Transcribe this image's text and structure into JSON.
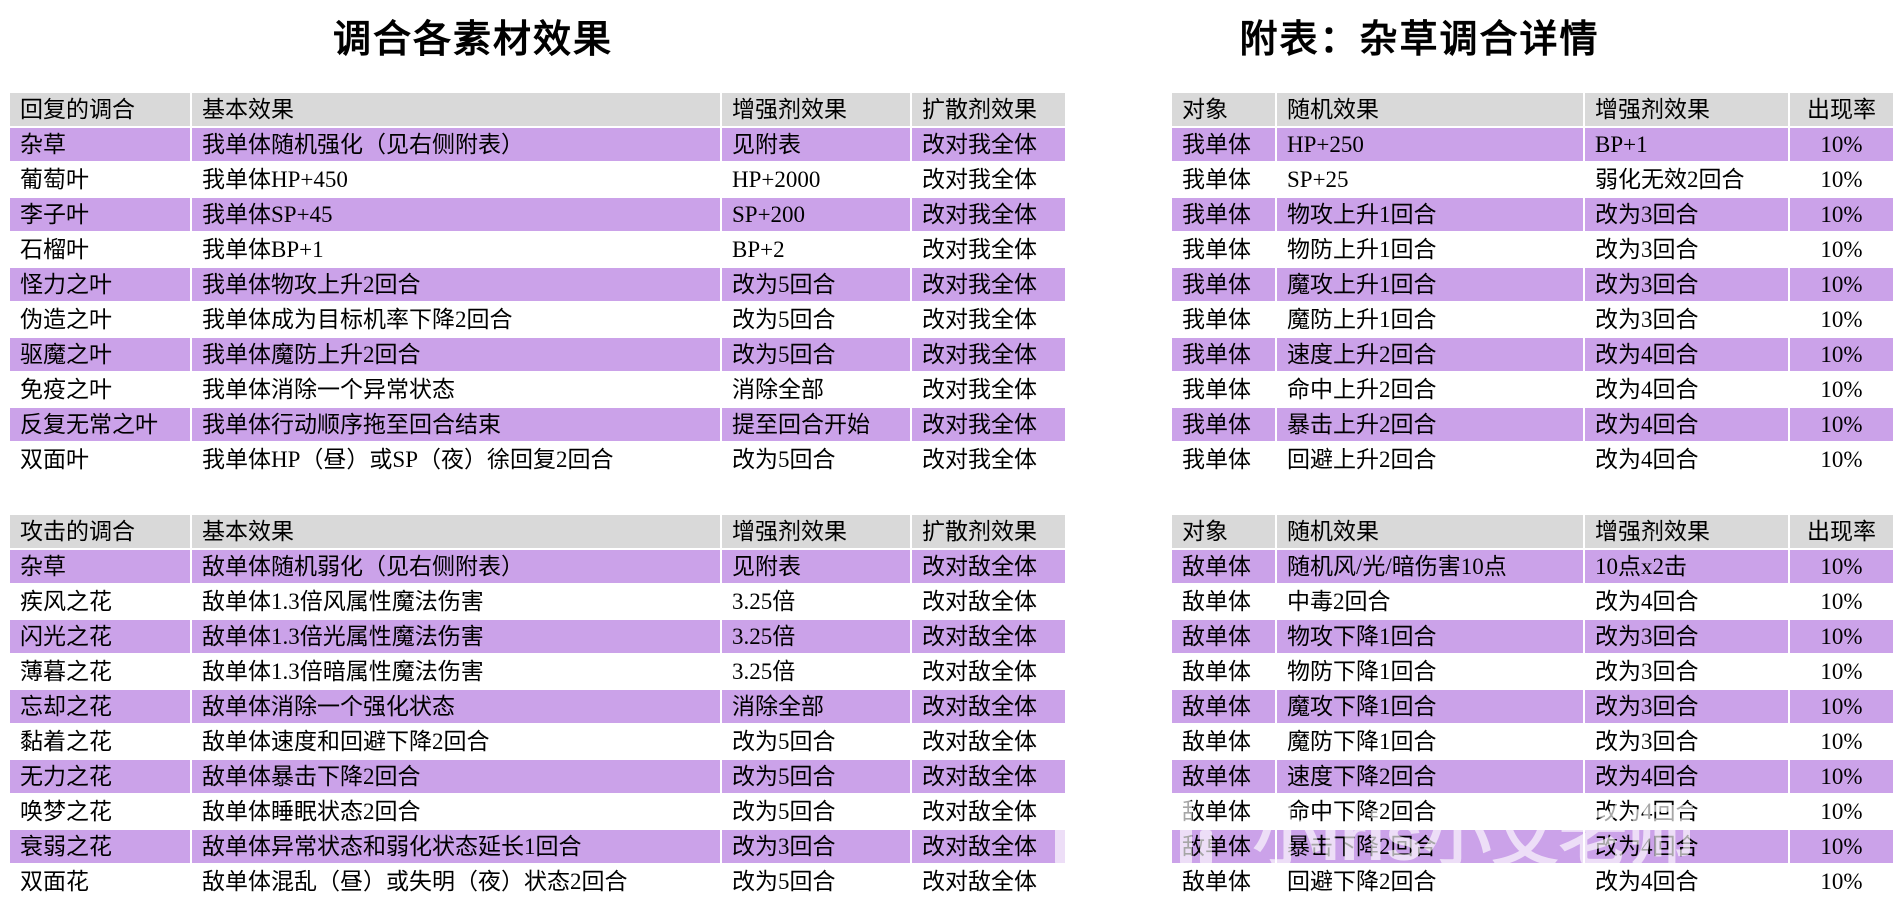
{
  "titles": {
    "left": "调合各素材效果",
    "right": "附表：杂草调合详情"
  },
  "colors": {
    "row_purple": "#cba2e9",
    "header_gray": "#d9d9d9",
    "background": "#ffffff",
    "text": "#000000"
  },
  "watermark": {
    "text": "小Iris小艾老师"
  },
  "tables": {
    "recovery": {
      "headers": [
        "回复的调合",
        "基本效果",
        "增强剂效果",
        "扩散剂效果"
      ],
      "rows": [
        [
          "杂草",
          "我单体随机强化（见右侧附表）",
          "见附表",
          "改对我全体"
        ],
        [
          "葡萄叶",
          "我单体HP+450",
          "HP+2000",
          "改对我全体"
        ],
        [
          "李子叶",
          "我单体SP+45",
          "SP+200",
          "改对我全体"
        ],
        [
          "石榴叶",
          "我单体BP+1",
          "BP+2",
          "改对我全体"
        ],
        [
          "怪力之叶",
          "我单体物攻上升2回合",
          "改为5回合",
          "改对我全体"
        ],
        [
          "伪造之叶",
          "我单体成为目标机率下降2回合",
          "改为5回合",
          "改对我全体"
        ],
        [
          "驱魔之叶",
          "我单体魔防上升2回合",
          "改为5回合",
          "改对我全体"
        ],
        [
          "免疫之叶",
          "我单体消除一个异常状态",
          "消除全部",
          "改对我全体"
        ],
        [
          "反复无常之叶",
          "我单体行动顺序拖至回合结束",
          "提至回合开始",
          "改对我全体"
        ],
        [
          "双面叶",
          "我单体HP（昼）或SP（夜）徐回复2回合",
          "改为5回合",
          "改对我全体"
        ]
      ]
    },
    "attack": {
      "headers": [
        "攻击的调合",
        "基本效果",
        "增强剂效果",
        "扩散剂效果"
      ],
      "rows": [
        [
          "杂草",
          "敌单体随机弱化（见右侧附表）",
          "见附表",
          "改对敌全体"
        ],
        [
          "疾风之花",
          "敌单体1.3倍风属性魔法伤害",
          "3.25倍",
          "改对敌全体"
        ],
        [
          "闪光之花",
          "敌单体1.3倍光属性魔法伤害",
          "3.25倍",
          "改对敌全体"
        ],
        [
          "薄暮之花",
          "敌单体1.3倍暗属性魔法伤害",
          "3.25倍",
          "改对敌全体"
        ],
        [
          "忘却之花",
          "敌单体消除一个强化状态",
          "消除全部",
          "改对敌全体"
        ],
        [
          "黏着之花",
          "敌单体速度和回避下降2回合",
          "改为5回合",
          "改对敌全体"
        ],
        [
          "无力之花",
          "敌单体暴击下降2回合",
          "改为5回合",
          "改对敌全体"
        ],
        [
          "唤梦之花",
          "敌单体睡眠状态2回合",
          "改为5回合",
          "改对敌全体"
        ],
        [
          "衰弱之花",
          "敌单体异常状态和弱化状态延长1回合",
          "改为3回合",
          "改对敌全体"
        ],
        [
          "双面花",
          "敌单体混乱（昼）或失明（夜）状态2回合",
          "改为5回合",
          "改对敌全体"
        ]
      ]
    },
    "weed_recovery": {
      "headers": [
        "对象",
        "随机效果",
        "增强剂效果",
        "出现率"
      ],
      "rows": [
        [
          "我单体",
          "HP+250",
          "BP+1",
          "10%"
        ],
        [
          "我单体",
          "SP+25",
          "弱化无效2回合",
          "10%"
        ],
        [
          "我单体",
          "物攻上升1回合",
          "改为3回合",
          "10%"
        ],
        [
          "我单体",
          "物防上升1回合",
          "改为3回合",
          "10%"
        ],
        [
          "我单体",
          "魔攻上升1回合",
          "改为3回合",
          "10%"
        ],
        [
          "我单体",
          "魔防上升1回合",
          "改为3回合",
          "10%"
        ],
        [
          "我单体",
          "速度上升2回合",
          "改为4回合",
          "10%"
        ],
        [
          "我单体",
          "命中上升2回合",
          "改为4回合",
          "10%"
        ],
        [
          "我单体",
          "暴击上升2回合",
          "改为4回合",
          "10%"
        ],
        [
          "我单体",
          "回避上升2回合",
          "改为4回合",
          "10%"
        ]
      ]
    },
    "weed_attack": {
      "headers": [
        "对象",
        "随机效果",
        "增强剂效果",
        "出现率"
      ],
      "rows": [
        [
          "敌单体",
          "随机风/光/暗伤害10点",
          "10点x2击",
          "10%"
        ],
        [
          "敌单体",
          "中毒2回合",
          "改为4回合",
          "10%"
        ],
        [
          "敌单体",
          "物攻下降1回合",
          "改为3回合",
          "10%"
        ],
        [
          "敌单体",
          "物防下降1回合",
          "改为3回合",
          "10%"
        ],
        [
          "敌单体",
          "魔攻下降1回合",
          "改为3回合",
          "10%"
        ],
        [
          "敌单体",
          "魔防下降1回合",
          "改为3回合",
          "10%"
        ],
        [
          "敌单体",
          "速度下降2回合",
          "改为4回合",
          "10%"
        ],
        [
          "敌单体",
          "命中下降2回合",
          "改为4回合",
          "10%"
        ],
        [
          "敌单体",
          "暴击下降2回合",
          "改为4回合",
          "10%"
        ],
        [
          "敌单体",
          "回避下降2回合",
          "改为4回合",
          "10%"
        ]
      ]
    }
  }
}
